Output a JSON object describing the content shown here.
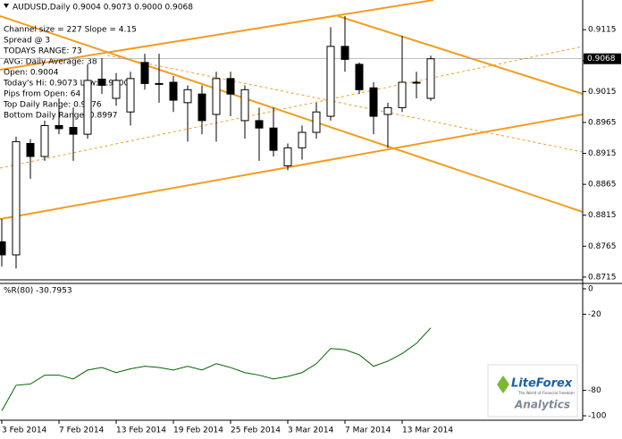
{
  "chart_data": {
    "type": "candlestick",
    "title": "AUDUSD,Daily  0.9004 0.9073 0.9000 0.9068",
    "info": [
      "Channel size = 227 Slope = 4.15",
      "Spread @ 3",
      "TODAYS RANGE: 73",
      "AVG: Daily Average: 38",
      "Open: 0.9004",
      "Today's Hi: 0.9073  Low: 0.9000",
      "Pips from Open: 64",
      "Top Daily Range: 0.9076",
      "Bottom Daily Range: 0.8997"
    ],
    "categories": [
      "3 Feb 2014",
      null,
      null,
      null,
      "7 Feb 2014",
      null,
      null,
      null,
      "13 Feb 2014",
      null,
      null,
      null,
      "19 Feb 2014",
      null,
      null,
      null,
      "25 Feb 2014",
      null,
      null,
      null,
      "3 Mar 2014",
      null,
      null,
      null,
      "7 Mar 2014",
      null,
      null,
      null,
      "13 Mar 2014",
      null,
      null
    ],
    "open": [
      0.8772,
      0.8751,
      0.8931,
      0.891,
      0.896,
      0.8957,
      0.8946,
      0.9035,
      0.9004,
      0.8982,
      0.9062,
      0.9028,
      0.903,
      0.8997,
      0.9011,
      0.8978,
      0.9036,
      0.8968,
      0.8968,
      0.8956,
      0.8895,
      0.8924,
      0.8949,
      0.8975,
      0.9088,
      0.9059,
      0.9021,
      0.8978,
      0.8989,
      0.903,
      0.9004
    ],
    "high": [
      0.8809,
      0.8942,
      0.8938,
      0.8968,
      0.9004,
      0.8989,
      0.9059,
      0.9069,
      0.9045,
      0.9047,
      0.9076,
      0.9076,
      0.904,
      0.9025,
      0.9025,
      0.9047,
      0.9047,
      0.9025,
      0.8989,
      0.8989,
      0.8931,
      0.896,
      0.8997,
      0.9119,
      0.9137,
      0.9062,
      0.903,
      0.8997,
      0.9105,
      0.9047,
      0.9073
    ],
    "low": [
      0.8732,
      0.8729,
      0.8874,
      0.8903,
      0.8946,
      0.8903,
      0.8939,
      0.9011,
      0.8992,
      0.896,
      0.9018,
      0.8997,
      0.8982,
      0.8934,
      0.8946,
      0.8934,
      0.8975,
      0.8939,
      0.8903,
      0.891,
      0.8888,
      0.8905,
      0.8939,
      0.8968,
      0.9047,
      0.9011,
      0.8946,
      0.8924,
      0.8982,
      0.9004,
      0.9
    ],
    "close": [
      0.8751,
      0.8934,
      0.891,
      0.896,
      0.8955,
      0.8946,
      0.9033,
      0.9025,
      0.9033,
      0.9036,
      0.9028,
      0.9027,
      0.9001,
      0.9018,
      0.8968,
      0.9036,
      0.9011,
      0.9018,
      0.8956,
      0.892,
      0.8924,
      0.8949,
      0.8982,
      0.9088,
      0.9067,
      0.9018,
      0.8975,
      0.8989,
      0.903,
      0.903,
      0.9068
    ],
    "ylim": [
      0.8712,
      0.9163
    ],
    "yticks": [
      0.8715,
      0.8765,
      0.8815,
      0.8865,
      0.8915,
      0.8965,
      0.9015,
      0.9065,
      0.9115
    ],
    "last_price": 0.9068,
    "indicator": {
      "name": "%R(80) -30.7953",
      "color": "#006400",
      "values": [
        -96,
        -76,
        -75,
        -68,
        -68,
        -71,
        -64,
        -62,
        -66,
        -63,
        -61,
        -62,
        -64,
        -61,
        -64,
        -59,
        -62,
        -66,
        -68,
        -71,
        -69,
        -66,
        -59,
        -47,
        -48,
        -52,
        -61,
        -57,
        -51,
        -43,
        -30.7953
      ],
      "ylim": [
        -103.5,
        3.5
      ],
      "yticks": [
        0,
        -20,
        -80,
        -100
      ]
    },
    "logo": {
      "brand": "LiteForex",
      "tagline": "The World of Financial Freedom",
      "product": "Analytics"
    }
  }
}
